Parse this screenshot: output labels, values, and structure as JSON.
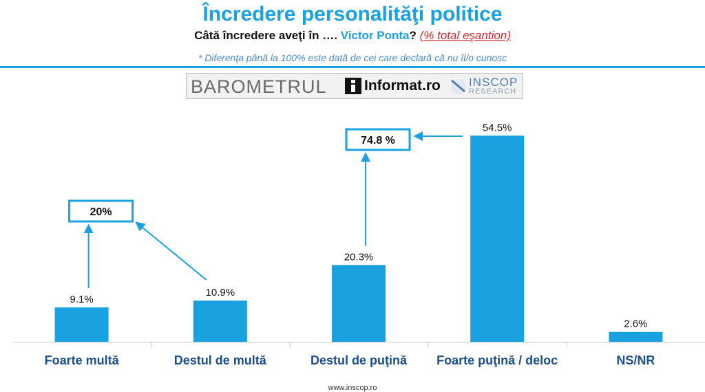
{
  "header": {
    "title": "Încredere personalităţi politice",
    "question": "Câtă încredere aveţi în ….",
    "person": "Victor Ponta",
    "question_mark": "?",
    "sample_note": "(% total eşantion)",
    "footnote": "* Diferenţa până la 100% este dată de cei care declară că nu îl/o cunosc"
  },
  "logo": {
    "barometer": "BAROMETRUL",
    "partner": "Informat",
    "partner_suffix": ".ro",
    "inscop": "INSCOP",
    "research": "RESEARCH"
  },
  "chart_data": {
    "type": "bar",
    "categories": [
      "Foarte multă",
      "Destul de multă",
      "Destul de puţină",
      "Foarte puţină / deloc",
      "NS/NR"
    ],
    "values": [
      9.1,
      10.9,
      20.3,
      54.5,
      2.6
    ],
    "data_labels": [
      "9.1%",
      "10.9%",
      "20.3%",
      "54.5%",
      "2.6%"
    ],
    "ylim": [
      0,
      60
    ],
    "grid": false,
    "bar_color": "#1aa1e0",
    "annotations": [
      {
        "label": "20%",
        "groups": [
          0,
          1
        ]
      },
      {
        "label": "74.8 %",
        "groups": [
          2,
          3
        ]
      }
    ]
  },
  "footer": {
    "url": "www.inscop.ro"
  }
}
